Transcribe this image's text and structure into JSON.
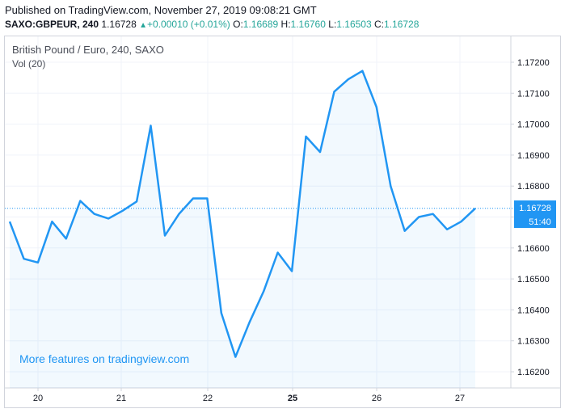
{
  "header": {
    "published": "Published on TradingView.com, November 27, 2019 09:08:21 GMT",
    "symbol": "SAXO:GBPEUR, 240",
    "last": "1.16728",
    "change_arrow": "▲",
    "change": "+0.00010 (+0.01%)",
    "o_label": "O:",
    "o_value": "1.16689",
    "h_label": "H:",
    "h_value": "1.16760",
    "l_label": "L:",
    "l_value": "1.16503",
    "c_label": "C:",
    "c_value": "1.16728"
  },
  "legend": {
    "title": "British Pound / Euro, 240, SAXO",
    "volume": "Vol (20)"
  },
  "watermark": "More features on tradingview.com",
  "price_tag": {
    "value": "1.16728",
    "countdown": "51:40"
  },
  "colors": {
    "line": "#2196f3",
    "area": "rgba(33,150,243,0.06)",
    "up": "#26a69a",
    "grid": "#f0f3fa",
    "border": "#d1d4dc"
  },
  "chart_data": {
    "type": "area",
    "x_ticks": [
      "20",
      "21",
      "22",
      "25",
      "26",
      "27"
    ],
    "x_tick_bold": [
      "25"
    ],
    "y_ticks": [
      "1.17200",
      "1.17100",
      "1.17000",
      "1.16900",
      "1.16800",
      "1.16700",
      "1.16600",
      "1.16500",
      "1.16400",
      "1.16300",
      "1.16200"
    ],
    "ylim": [
      1.16175,
      1.17295
    ],
    "grid": true,
    "last_price_line": 1.16728,
    "series": [
      {
        "values": [
          1.16685,
          1.16565,
          1.16553,
          1.16685,
          1.1663,
          1.16752,
          1.1671,
          1.16695,
          1.1672,
          1.1675,
          1.16995,
          1.1664,
          1.1671,
          1.1676,
          1.1676,
          1.1639,
          1.16248,
          1.1636,
          1.1646,
          1.16585,
          1.16525,
          1.1696,
          1.1691,
          1.17105,
          1.17145,
          1.17172,
          1.17055,
          1.168,
          1.16655,
          1.167,
          1.1671,
          1.1666,
          1.16685,
          1.16728
        ]
      }
    ]
  }
}
